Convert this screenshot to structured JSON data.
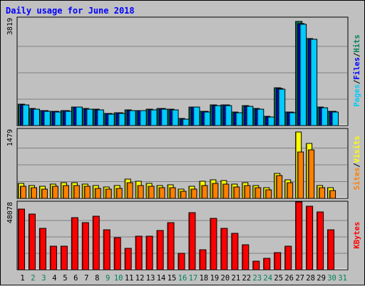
{
  "chart_data": {
    "type": "bar",
    "title": "Daily usage for June 2018",
    "categories": [
      "1",
      "2",
      "3",
      "4",
      "5",
      "6",
      "7",
      "8",
      "9",
      "10",
      "11",
      "12",
      "13",
      "14",
      "15",
      "16",
      "17",
      "18",
      "19",
      "20",
      "21",
      "22",
      "23",
      "24",
      "25",
      "26",
      "27",
      "28",
      "29",
      "30",
      "31"
    ],
    "weekend_days": [
      "2",
      "3",
      "9",
      "10",
      "16",
      "17",
      "23",
      "24",
      "30",
      "31"
    ],
    "panels": [
      {
        "id": "pages-files-hits",
        "ymax_label": "3819",
        "ymax": 3819,
        "legend": [
          "Pages",
          "/",
          "Files",
          "/",
          "Hits"
        ],
        "series": [
          {
            "name": "Hits",
            "color": "#00805c",
            "values": [
              770,
              610,
              540,
              520,
              540,
              680,
              610,
              590,
              440,
              470,
              560,
              550,
              590,
              620,
              590,
              250,
              680,
              520,
              740,
              750,
              480,
              710,
              610,
              330,
              1360,
              490,
              3760,
              3140,
              660,
              520,
              0
            ]
          },
          {
            "name": "Files",
            "color": "#0000ff",
            "values": [
              760,
              600,
              530,
              510,
              530,
              670,
              600,
              580,
              430,
              460,
              550,
              540,
              580,
              610,
              580,
              240,
              670,
              510,
              730,
              740,
              470,
              700,
              600,
              320,
              1340,
              480,
              3700,
              3120,
              650,
              510,
              0
            ]
          },
          {
            "name": "Pages",
            "color": "#00ccff",
            "values": [
              750,
              590,
              520,
              500,
              520,
              660,
              590,
              570,
              420,
              450,
              540,
              530,
              570,
              600,
              570,
              230,
              660,
              500,
              720,
              730,
              460,
              690,
              590,
              310,
              1320,
              470,
              3660,
              3120,
              640,
              500,
              0
            ]
          }
        ]
      },
      {
        "id": "visits-sites",
        "ymax_label": "1479",
        "ymax": 1479,
        "legend": [
          "Sites",
          "/",
          "Visits"
        ],
        "series": [
          {
            "name": "Visits",
            "color": "#ffff00",
            "values": [
              330,
              290,
              260,
              320,
              350,
              340,
              320,
              280,
              250,
              280,
              430,
              370,
              330,
              290,
              300,
              200,
              260,
              370,
              410,
              400,
              310,
              340,
              290,
              230,
              550,
              410,
              1470,
              1210,
              280,
              230,
              0
            ]
          },
          {
            "name": "Sites",
            "color": "#ff8000",
            "values": [
              270,
              230,
              210,
              260,
              290,
              280,
              260,
              220,
              200,
              220,
              340,
              290,
              260,
              230,
              240,
              160,
              210,
              290,
              330,
              320,
              250,
              280,
              230,
              190,
              500,
              340,
              1030,
              1070,
              230,
              180,
              0
            ]
          }
        ]
      },
      {
        "id": "kbytes",
        "ymax_label": "48078",
        "ymax": 48078,
        "legend": [
          "KBytes"
        ],
        "series": [
          {
            "name": "KBytes",
            "color": "#ff0000",
            "values": [
              44500,
              41000,
              30500,
              17500,
              17500,
              38000,
              34500,
              39000,
              29500,
              23500,
              15500,
              24500,
              24500,
              29000,
              34500,
              12000,
              42000,
              14500,
              37500,
              30500,
              26500,
              18500,
              6500,
              8500,
              12500,
              17500,
              49500,
              46500,
              42500,
              29500,
              0
            ]
          }
        ]
      }
    ]
  }
}
